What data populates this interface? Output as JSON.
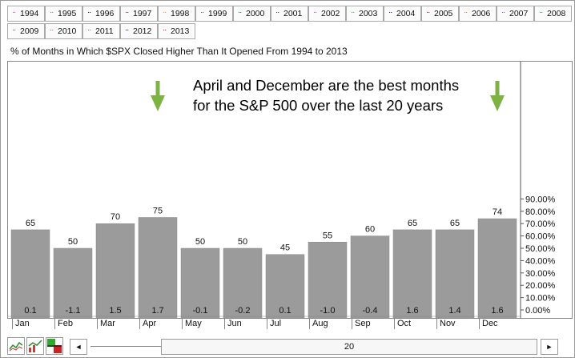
{
  "years": [
    {
      "label": "1994",
      "color": "#cc33cc"
    },
    {
      "label": "1995",
      "color": "#33aa33"
    },
    {
      "label": "1996",
      "color": "#000080"
    },
    {
      "label": "1997",
      "color": "#800000"
    },
    {
      "label": "1998",
      "color": "#ff8800"
    },
    {
      "label": "1999",
      "color": "#555555"
    },
    {
      "label": "2000",
      "color": "#006666"
    },
    {
      "label": "2001",
      "color": "#333333"
    },
    {
      "label": "2002",
      "color": "#cc33cc"
    },
    {
      "label": "2003",
      "color": "#33aa33"
    },
    {
      "label": "2004",
      "color": "#000080"
    },
    {
      "label": "2005",
      "color": "#990000"
    },
    {
      "label": "2006",
      "color": "#ff6600"
    },
    {
      "label": "2007",
      "color": "#9933cc"
    },
    {
      "label": "2008",
      "color": "#008080"
    },
    {
      "label": "2009",
      "color": "#555555"
    },
    {
      "label": "2010",
      "color": "#cc33cc"
    },
    {
      "label": "2011",
      "color": "#33aa33"
    },
    {
      "label": "2012",
      "color": "#000080"
    },
    {
      "label": "2013",
      "color": "#cc0000"
    }
  ],
  "annotation": {
    "line1": "April and December are the best months",
    "line2": "for the S&P 500 over the last 20 years"
  },
  "chart_data": {
    "type": "bar",
    "title": "% of Months in Which $SPX Closed Higher Than It Opened From 1994 to 2013",
    "categories": [
      "Jan",
      "Feb",
      "Mar",
      "Apr",
      "May",
      "Jun",
      "Jul",
      "Aug",
      "Sep",
      "Oct",
      "Nov",
      "Dec"
    ],
    "values": [
      65,
      50,
      70,
      75,
      50,
      50,
      45,
      55,
      60,
      65,
      65,
      74
    ],
    "value_labels": [
      "65",
      "50",
      "70",
      "75",
      "50",
      "50",
      "45",
      "55",
      "60",
      "65",
      "65",
      "74"
    ],
    "bottom_labels": [
      "0.1",
      "-1.1",
      "1.5",
      "1.7",
      "-0.1",
      "-0.2",
      "0.1",
      "-1.0",
      "-0.4",
      "1.6",
      "1.4",
      "1.6"
    ],
    "y_ticks": [
      0,
      10,
      20,
      30,
      40,
      50,
      60,
      70,
      80,
      90
    ],
    "y_tick_labels": [
      "0.00%",
      "10.00%",
      "20.00%",
      "30.00%",
      "40.00%",
      "50.00%",
      "60.00%",
      "70.00%",
      "80.00%",
      "90.00%"
    ],
    "ylim": [
      0,
      100
    ],
    "grid": false,
    "bar_color": "#9b9b9b",
    "arrow_color": "#7cb342",
    "arrow_months": [
      "Apr",
      "Dec"
    ]
  },
  "bottom_bar": {
    "scroll_left": "◄",
    "scroll_right": "►",
    "slider_value": "20"
  }
}
